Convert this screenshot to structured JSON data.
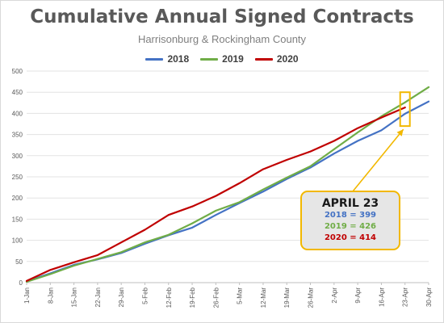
{
  "chart_data": {
    "type": "line",
    "title": "Cumulative Annual Signed Contracts",
    "subtitle": "Harrisonburg & Rockingham County",
    "xlabel": "",
    "ylabel": "",
    "ylim": [
      0,
      500
    ],
    "yticks": [
      0,
      50,
      100,
      150,
      200,
      250,
      300,
      350,
      400,
      450,
      500
    ],
    "xlim": [
      "1-Jan",
      "30-Apr"
    ],
    "xticks": [
      "1-Jan",
      "8-Jan",
      "15-Jan",
      "22-Jan",
      "29-Jan",
      "5-Feb",
      "12-Feb",
      "19-Feb",
      "26-Feb",
      "5-Mar",
      "12-Mar",
      "19-Mar",
      "26-Mar",
      "2-Apr",
      "9-Apr",
      "16-Apr",
      "23-Apr",
      "30-Apr"
    ],
    "grid": "horizontal",
    "legend": "top",
    "series": [
      {
        "name": "2018",
        "color": "#4472c4",
        "x": [
          "1-Jan",
          "8-Jan",
          "15-Jan",
          "22-Jan",
          "29-Jan",
          "5-Feb",
          "12-Feb",
          "19-Feb",
          "26-Feb",
          "5-Mar",
          "12-Mar",
          "19-Mar",
          "26-Mar",
          "2-Apr",
          "9-Apr",
          "16-Apr",
          "23-Apr",
          "30-Apr"
        ],
        "values": [
          3,
          22,
          42,
          55,
          70,
          92,
          112,
          130,
          160,
          188,
          215,
          245,
          272,
          305,
          335,
          360,
          399,
          428
        ]
      },
      {
        "name": "2019",
        "color": "#70ad47",
        "x": [
          "1-Jan",
          "8-Jan",
          "15-Jan",
          "22-Jan",
          "29-Jan",
          "5-Feb",
          "12-Feb",
          "19-Feb",
          "26-Feb",
          "5-Mar",
          "12-Mar",
          "19-Mar",
          "26-Mar",
          "2-Apr",
          "9-Apr",
          "16-Apr",
          "23-Apr",
          "30-Apr"
        ],
        "values": [
          2,
          20,
          40,
          56,
          72,
          95,
          113,
          140,
          170,
          190,
          220,
          248,
          275,
          315,
          355,
          393,
          426,
          462
        ]
      },
      {
        "name": "2020",
        "color": "#c00000",
        "x": [
          "1-Jan",
          "8-Jan",
          "15-Jan",
          "22-Jan",
          "29-Jan",
          "5-Feb",
          "12-Feb",
          "19-Feb",
          "26-Feb",
          "5-Mar",
          "12-Mar",
          "19-Mar",
          "26-Mar",
          "2-Apr",
          "9-Apr",
          "16-Apr",
          "23-Apr"
        ],
        "values": [
          4,
          30,
          48,
          65,
          95,
          125,
          160,
          180,
          205,
          235,
          268,
          290,
          310,
          335,
          365,
          390,
          414
        ]
      }
    ],
    "annotation": {
      "title": "APRIL 23",
      "lines": [
        {
          "text": "2018 = 399",
          "color": "#4472c4"
        },
        {
          "text": "2019 = 426",
          "color": "#70ad47"
        },
        {
          "text": "2020 = 414",
          "color": "#c00000"
        }
      ],
      "highlight_date": "23-Apr",
      "highlight_range": [
        370,
        450
      ],
      "accent_color": "#f2b800"
    }
  }
}
